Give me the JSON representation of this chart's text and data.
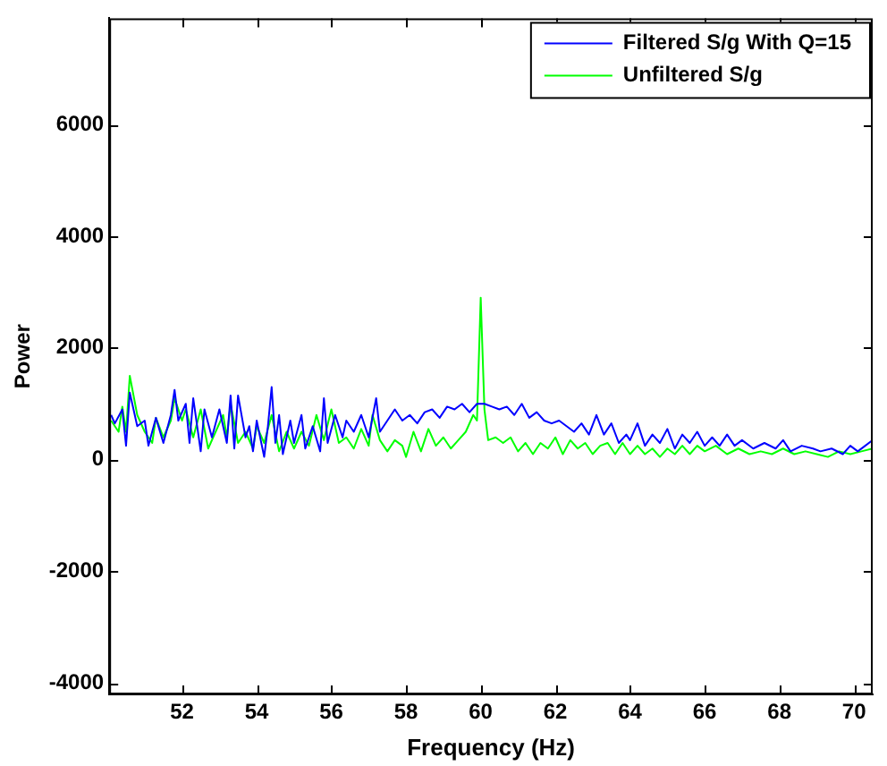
{
  "chart_data": {
    "type": "line",
    "xlabel": "Frequency (Hz)",
    "ylabel": "Power",
    "xlim": [
      50.05,
      70.5
    ],
    "ylim": [
      -4200,
      7900
    ],
    "xticks": [
      52,
      54,
      56,
      58,
      60,
      62,
      64,
      66,
      68,
      70
    ],
    "yticks": [
      -4000,
      -2000,
      0,
      2000,
      4000,
      6000
    ],
    "grid": false,
    "legend": "top right",
    "marker": "none",
    "line_style": "solid",
    "series": [
      {
        "name": "Filtered S/g With Q=15",
        "color": "#0000ff",
        "x": [
          50.1,
          50.2,
          50.4,
          50.5,
          50.6,
          50.8,
          51.0,
          51.1,
          51.3,
          51.5,
          51.7,
          51.8,
          51.9,
          52.1,
          52.2,
          52.3,
          52.5,
          52.6,
          52.8,
          53.0,
          53.2,
          53.3,
          53.4,
          53.5,
          53.7,
          53.8,
          53.9,
          54.0,
          54.2,
          54.3,
          54.4,
          54.5,
          54.6,
          54.7,
          54.9,
          55.0,
          55.2,
          55.3,
          55.5,
          55.7,
          55.8,
          55.9,
          56.1,
          56.3,
          56.4,
          56.6,
          56.8,
          57.0,
          57.2,
          57.3,
          57.5,
          57.7,
          57.9,
          58.1,
          58.3,
          58.5,
          58.7,
          58.9,
          59.1,
          59.3,
          59.5,
          59.7,
          59.9,
          60.1,
          60.3,
          60.5,
          60.7,
          60.9,
          61.1,
          61.3,
          61.5,
          61.7,
          61.9,
          62.1,
          62.3,
          62.5,
          62.7,
          62.9,
          63.1,
          63.3,
          63.5,
          63.7,
          63.9,
          64.0,
          64.2,
          64.4,
          64.6,
          64.8,
          65.0,
          65.2,
          65.4,
          65.6,
          65.8,
          66.0,
          66.2,
          66.4,
          66.6,
          66.8,
          67.0,
          67.3,
          67.6,
          67.9,
          68.1,
          68.3,
          68.6,
          68.9,
          69.1,
          69.4,
          69.7,
          69.9,
          70.1,
          70.3,
          70.5
        ],
        "values": [
          800,
          650,
          900,
          250,
          1200,
          600,
          700,
          250,
          750,
          300,
          800,
          1250,
          700,
          1000,
          300,
          1100,
          150,
          900,
          400,
          900,
          300,
          1150,
          200,
          1150,
          400,
          600,
          150,
          700,
          50,
          600,
          1300,
          300,
          800,
          100,
          700,
          300,
          800,
          200,
          600,
          150,
          1100,
          300,
          800,
          400,
          700,
          500,
          800,
          400,
          1100,
          500,
          700,
          900,
          700,
          800,
          650,
          850,
          900,
          750,
          950,
          900,
          1000,
          850,
          1000,
          1000,
          950,
          900,
          950,
          800,
          1000,
          750,
          850,
          700,
          650,
          700,
          600,
          500,
          650,
          450,
          800,
          450,
          650,
          300,
          450,
          350,
          650,
          250,
          450,
          300,
          550,
          200,
          450,
          300,
          500,
          250,
          400,
          250,
          450,
          250,
          350,
          200,
          300,
          200,
          350,
          150,
          250,
          200,
          150,
          200,
          100,
          250,
          150,
          250,
          350
        ]
      },
      {
        "name": "Unfiltered S/g",
        "color": "#00ff00",
        "x": [
          50.1,
          50.3,
          50.4,
          50.5,
          50.6,
          50.8,
          51.0,
          51.2,
          51.3,
          51.5,
          51.7,
          51.8,
          52.0,
          52.1,
          52.3,
          52.5,
          52.7,
          52.9,
          53.1,
          53.2,
          53.3,
          53.5,
          53.7,
          53.9,
          54.0,
          54.2,
          54.4,
          54.6,
          54.8,
          55.0,
          55.2,
          55.4,
          55.6,
          55.8,
          56.0,
          56.2,
          56.4,
          56.6,
          56.8,
          57.0,
          57.1,
          57.3,
          57.5,
          57.7,
          57.9,
          58.0,
          58.2,
          58.4,
          58.6,
          58.8,
          59.0,
          59.2,
          59.4,
          59.6,
          59.8,
          59.9,
          60.0,
          60.1,
          60.2,
          60.4,
          60.6,
          60.8,
          61.0,
          61.2,
          61.4,
          61.6,
          61.8,
          62.0,
          62.2,
          62.4,
          62.6,
          62.8,
          63.0,
          63.2,
          63.4,
          63.6,
          63.8,
          64.0,
          64.2,
          64.4,
          64.6,
          64.8,
          65.0,
          65.2,
          65.4,
          65.6,
          65.8,
          66.0,
          66.3,
          66.6,
          66.9,
          67.2,
          67.5,
          67.8,
          68.1,
          68.4,
          68.7,
          69.0,
          69.3,
          69.6,
          69.9,
          70.2,
          70.5
        ],
        "values": [
          700,
          500,
          950,
          500,
          1500,
          800,
          500,
          300,
          750,
          400,
          700,
          1100,
          700,
          900,
          400,
          900,
          200,
          500,
          800,
          400,
          1000,
          300,
          500,
          200,
          600,
          300,
          800,
          150,
          500,
          200,
          500,
          250,
          800,
          350,
          900,
          300,
          400,
          200,
          550,
          250,
          800,
          350,
          150,
          350,
          250,
          50,
          500,
          150,
          550,
          250,
          400,
          200,
          350,
          500,
          800,
          700,
          2900,
          900,
          350,
          400,
          300,
          400,
          150,
          300,
          100,
          300,
          200,
          400,
          100,
          350,
          200,
          300,
          100,
          250,
          300,
          100,
          300,
          100,
          250,
          100,
          200,
          50,
          200,
          100,
          250,
          100,
          250,
          150,
          250,
          100,
          200,
          100,
          150,
          100,
          200,
          100,
          150,
          100,
          50,
          150,
          100,
          150,
          200
        ]
      }
    ]
  }
}
